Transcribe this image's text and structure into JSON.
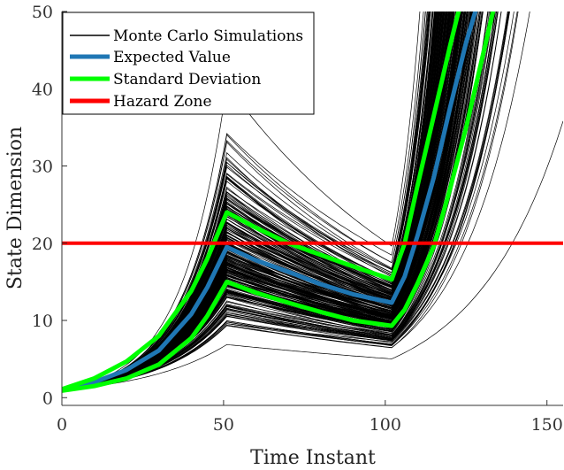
{
  "chart_data": {
    "type": "line",
    "title": "",
    "xlabel": "Time Instant",
    "ylabel": "State Dimension",
    "xlim": [
      0,
      155
    ],
    "ylim": [
      -1,
      50
    ],
    "x_ticks": [
      0,
      50,
      100,
      150
    ],
    "y_ticks": [
      0,
      10,
      20,
      30,
      40,
      50
    ],
    "x_tick_labels": [
      "0",
      "50",
      "100",
      "150"
    ],
    "y_tick_labels": [
      "0",
      "10",
      "20",
      "30",
      "40",
      "50"
    ],
    "grid": false,
    "legend_position": "top-left",
    "legend": [
      {
        "label": "Monte Carlo Simulations",
        "color": "#000000"
      },
      {
        "label": "Expected Value",
        "color": "#1f77b4"
      },
      {
        "label": "Standard Deviation",
        "color": "#00ff00"
      },
      {
        "label": "Hazard Zone",
        "color": "#ff0000"
      }
    ],
    "series": [
      {
        "name": "Expected Value",
        "color": "#1f77b4",
        "x": [
          0,
          10,
          20,
          30,
          40,
          45,
          51,
          60,
          70,
          80,
          90,
          102,
          106,
          110,
          115,
          120,
          125,
          130
        ],
        "y": [
          1,
          2.0,
          3.6,
          6.1,
          10.8,
          14.3,
          19.5,
          17.8,
          16.3,
          14.7,
          13.4,
          12.3,
          15.7,
          21.0,
          28.5,
          37.5,
          46.0,
          53
        ]
      },
      {
        "name": "Standard Deviation",
        "color": "#00ff00",
        "x": [
          0,
          10,
          20,
          30,
          40,
          45,
          51,
          60,
          70,
          80,
          90,
          102,
          106,
          110,
          115,
          120,
          125
        ],
        "y": [
          1.1,
          2.5,
          4.7,
          8.0,
          13.8,
          18.0,
          24.0,
          22.0,
          20.0,
          18.5,
          17.0,
          15.3,
          20.0,
          27.5,
          36.5,
          45.5,
          54
        ]
      },
      {
        "name": "Standard Deviation",
        "color": "#00ff00",
        "x": [
          0,
          10,
          20,
          30,
          40,
          45,
          51,
          60,
          70,
          80,
          90,
          102,
          106,
          110,
          115,
          120,
          125,
          130,
          135
        ],
        "y": [
          0.9,
          1.5,
          2.5,
          4.3,
          7.7,
          10.6,
          15.0,
          13.6,
          12.3,
          11.1,
          10.0,
          9.3,
          11.4,
          14.8,
          19.6,
          27.0,
          35.0,
          44.0,
          53
        ]
      },
      {
        "name": "Hazard Zone",
        "color": "#ff0000",
        "x": [
          0,
          155
        ],
        "y": [
          20,
          20
        ]
      }
    ]
  }
}
